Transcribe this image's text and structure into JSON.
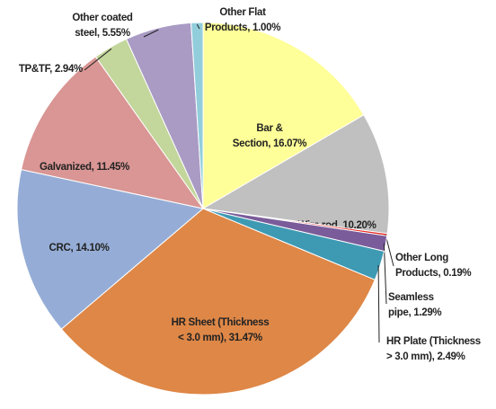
{
  "chart_data": {
    "type": "pie",
    "values": [
      16.07,
      10.2,
      0.19,
      1.29,
      2.49,
      31.47,
      14.1,
      11.45,
      2.94,
      5.55,
      1.0
    ],
    "value_labels": [
      [
        "Bar &",
        "Section, 16.07%"
      ],
      [
        "Wire rod, 10.20%"
      ],
      [
        "Other Long",
        "Products, 0.19%"
      ],
      [
        "Seamless",
        "pipe, 1.29%"
      ],
      [
        "HR Plate (Thickness",
        "> 3.0 mm), 2.49%"
      ],
      [
        "HR Sheet (Thickness",
        "< 3.0 mm), 31.47%"
      ],
      [
        "CRC, 14.10%"
      ],
      [
        "Galvanized, 11.45%"
      ],
      [
        "TP&TF, 2.94%"
      ],
      [
        "Other coated",
        "steel, 5.55%"
      ],
      [
        "Other Flat",
        "Products, 1.00%"
      ]
    ],
    "colors": [
      "#FFFF99",
      "#C0C0C0",
      "#E8271F",
      "#7A5C9A",
      "#3E9AB3",
      "#DE8747",
      "#95ADD6",
      "#D99694",
      "#C3D69B",
      "#A99BC4",
      "#92CDDC"
    ]
  }
}
